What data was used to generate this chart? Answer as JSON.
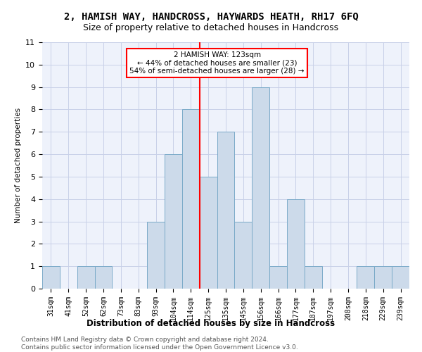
{
  "title": "2, HAMISH WAY, HANDCROSS, HAYWARDS HEATH, RH17 6FQ",
  "subtitle": "Size of property relative to detached houses in Handcross",
  "xlabel": "Distribution of detached houses by size in Handcross",
  "ylabel": "Number of detached properties",
  "categories": [
    "31sqm",
    "41sqm",
    "52sqm",
    "62sqm",
    "73sqm",
    "83sqm",
    "93sqm",
    "104sqm",
    "114sqm",
    "125sqm",
    "135sqm",
    "145sqm",
    "156sqm",
    "166sqm",
    "177sqm",
    "187sqm",
    "197sqm",
    "208sqm",
    "218sqm",
    "229sqm",
    "239sqm"
  ],
  "values": [
    1,
    0,
    1,
    1,
    0,
    0,
    3,
    6,
    8,
    5,
    7,
    3,
    9,
    1,
    4,
    1,
    0,
    0,
    1,
    1,
    1
  ],
  "bar_color": "#ccdaea",
  "bar_edge_color": "#7aaac8",
  "vline_x_index": 8.5,
  "vline_color": "red",
  "annotation_text": "2 HAMISH WAY: 123sqm\n← 44% of detached houses are smaller (23)\n54% of semi-detached houses are larger (28) →",
  "annotation_box_color": "white",
  "annotation_box_edge_color": "red",
  "ylim": [
    0,
    11
  ],
  "yticks": [
    0,
    1,
    2,
    3,
    4,
    5,
    6,
    7,
    8,
    9,
    10,
    11
  ],
  "footer1": "Contains HM Land Registry data © Crown copyright and database right 2024.",
  "footer2": "Contains public sector information licensed under the Open Government Licence v3.0.",
  "bg_color": "#eef2fb",
  "grid_color": "#c8d0e8",
  "title_fontsize": 10,
  "subtitle_fontsize": 9,
  "xlabel_fontsize": 8.5,
  "ylabel_fontsize": 7.5,
  "tick_fontsize": 7,
  "footer_fontsize": 6.5,
  "ann_fontsize": 7.5
}
